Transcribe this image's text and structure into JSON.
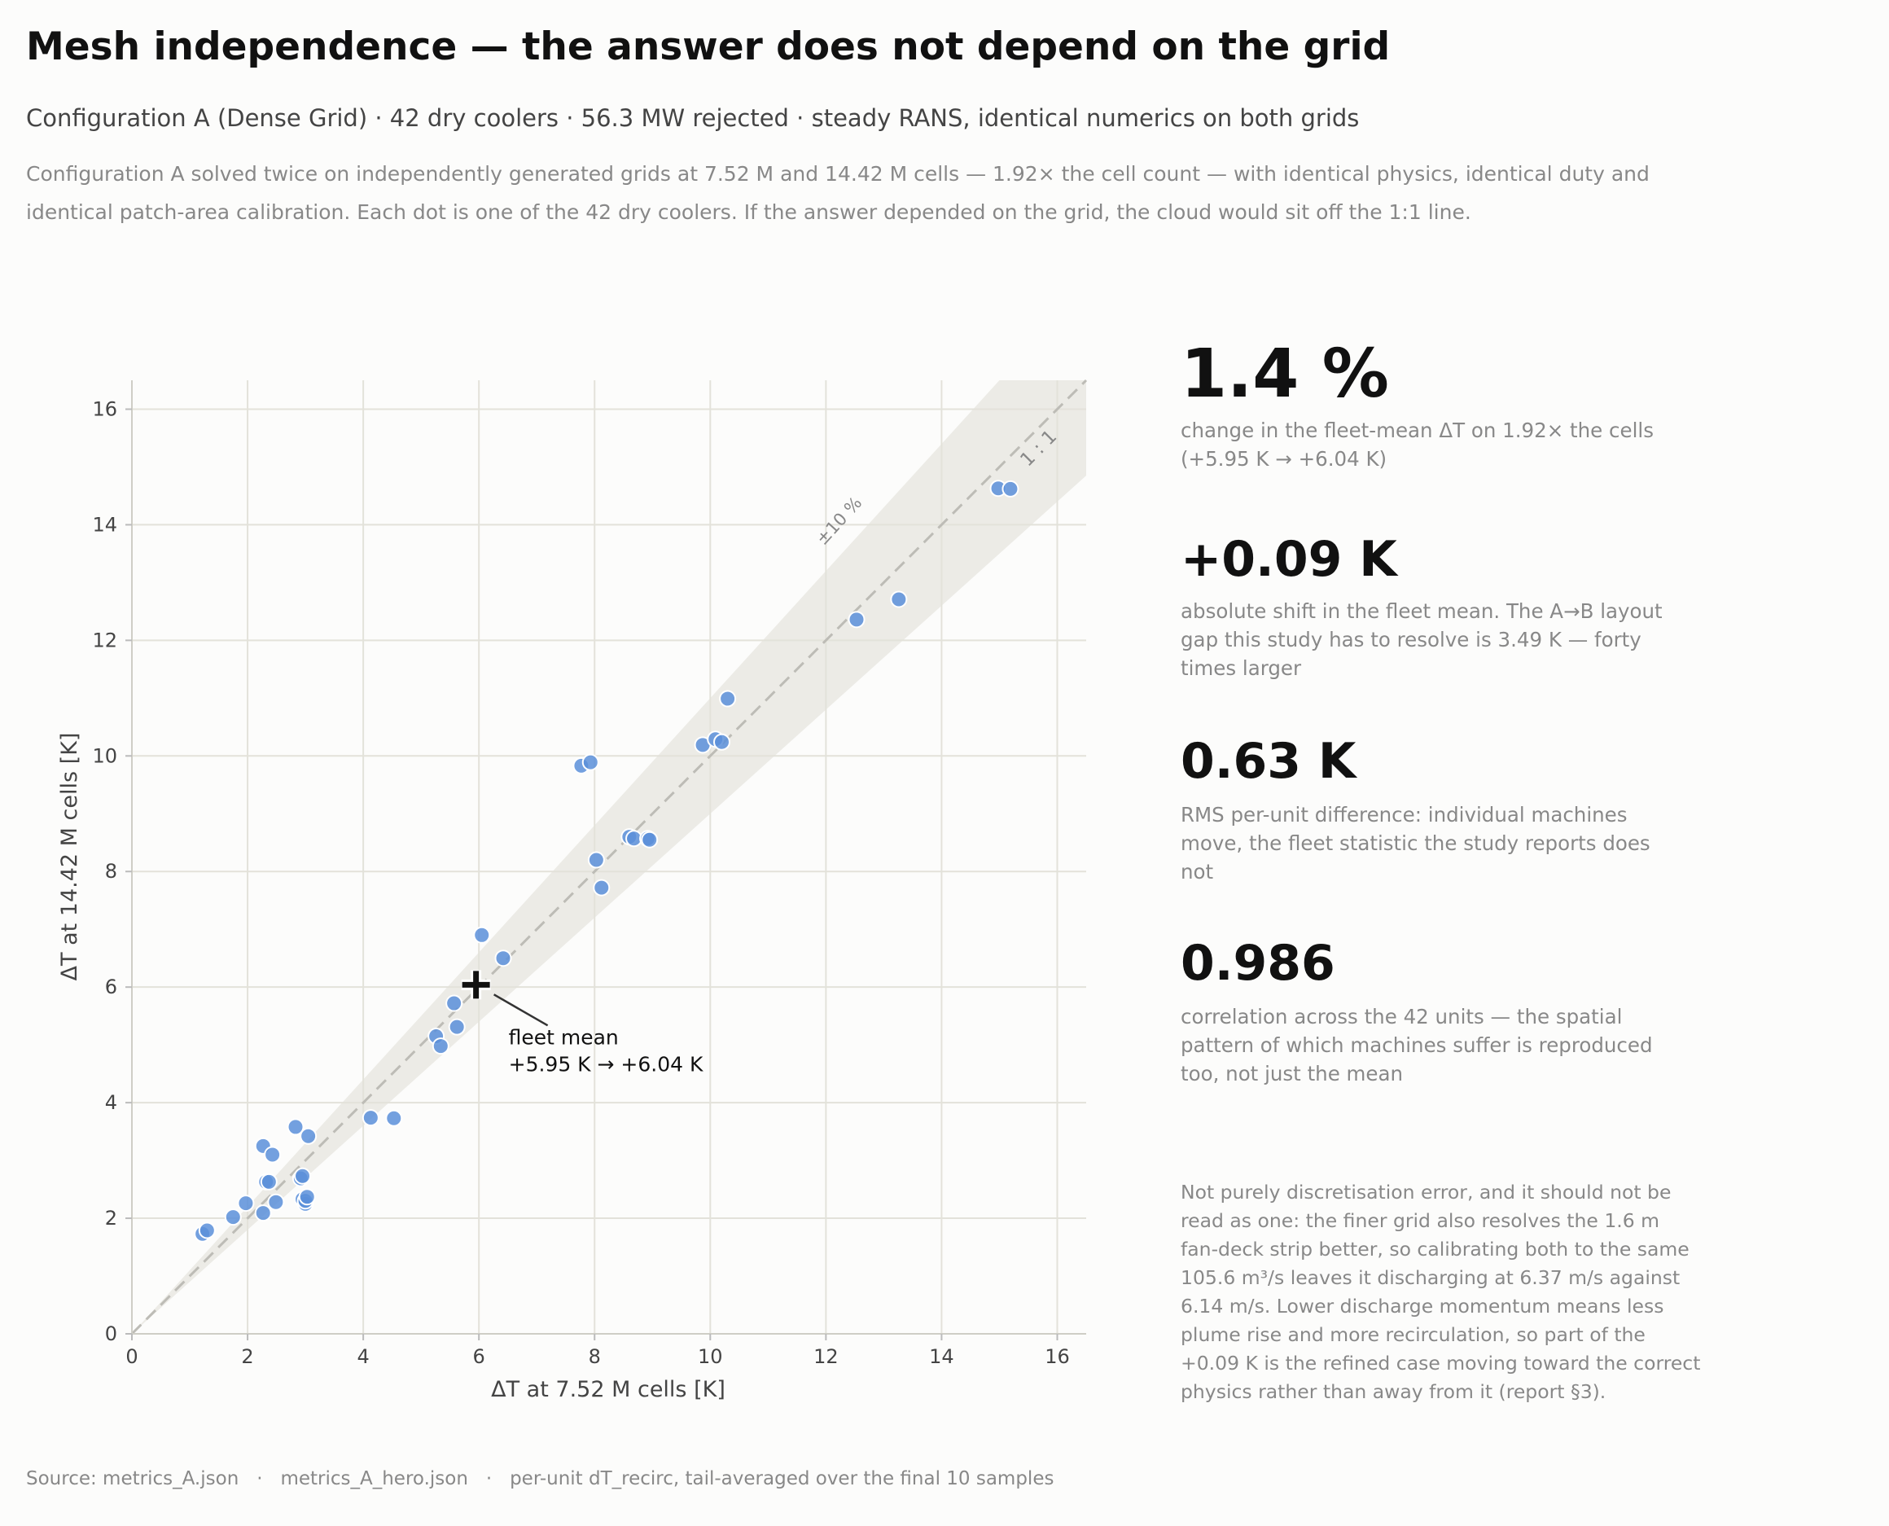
{
  "header": {
    "title": "Mesh independence — the answer does not depend on the grid",
    "subtitle": "Configuration A (Dense Grid) · 42 dry coolers · 56.3 MW rejected · steady RANS, identical numerics on both grids",
    "description": "Configuration A solved twice on independently generated grids at 7.52 M and 14.42 M cells — 1.92× the cell count — with identical physics, identical duty and identical patch-area calibration. Each dot is one of the 42 dry coolers. If the answer depended on the grid, the cloud would sit off the 1:1 line."
  },
  "stats": [
    {
      "value": "1.4 %",
      "description": "change in the fleet-mean ΔT on 1.92× the cells (+5.95 K → +6.04 K)"
    },
    {
      "value": "+0.09 K",
      "description": "absolute shift in the fleet mean. The A→B layout gap this study has to resolve is 3.49 K — forty times larger"
    },
    {
      "value": "0.63 K",
      "description": "RMS per-unit difference: individual machines move, the fleet statistic the study reports does not"
    },
    {
      "value": "0.986",
      "description": "correlation across the 42 units — the spatial pattern of which machines suffer is reproduced too, not just the mean"
    }
  ],
  "note": "Not purely discretisation error, and it should not be read as one: the finer grid also resolves the 1.6 m fan-deck strip better, so calibrating both to the same 105.6 m³/s leaves it discharging at 6.37 m/s against 6.14 m/s. Lower discharge momentum means less plume rise and more recirculation, so part of the +0.09 K is the refined case moving toward the correct physics rather than away from it (report §3).",
  "source": "Source: metrics_A.json   ·   metrics_A_hero.json   ·   per-unit dT_recirc, tail-averaged over the final 10 samples",
  "colors": {
    "point": "#5b8fd9",
    "band": "#ecebe6",
    "grid": "#e3e2da",
    "mean_marker": "#111111"
  },
  "chart_data": {
    "type": "scatter",
    "xlabel": "ΔT at 7.52 M cells  [K]",
    "ylabel": "ΔT at 14.42 M cells  [K]",
    "xlim": [
      0,
      16.5
    ],
    "ylim": [
      0,
      16.5
    ],
    "ticks": [
      0,
      2,
      4,
      6,
      8,
      10,
      12,
      14,
      16
    ],
    "grid": true,
    "identity_line_label": "1 : 1",
    "band_label": "±10 %",
    "band_fraction": 0.1,
    "fleet_mean": {
      "x": 5.95,
      "y": 6.04,
      "label_line1": "fleet mean",
      "label_line2": "+5.95 K → +6.04 K"
    },
    "points": [
      {
        "x": 1.22,
        "y": 1.73
      },
      {
        "x": 1.3,
        "y": 1.79
      },
      {
        "x": 1.75,
        "y": 2.02
      },
      {
        "x": 1.97,
        "y": 2.26
      },
      {
        "x": 2.27,
        "y": 2.09
      },
      {
        "x": 2.27,
        "y": 3.25
      },
      {
        "x": 2.32,
        "y": 2.63
      },
      {
        "x": 2.37,
        "y": 2.63
      },
      {
        "x": 2.43,
        "y": 3.1
      },
      {
        "x": 2.49,
        "y": 2.28
      },
      {
        "x": 2.83,
        "y": 3.58
      },
      {
        "x": 2.92,
        "y": 2.69
      },
      {
        "x": 2.95,
        "y": 2.73
      },
      {
        "x": 2.95,
        "y": 2.33
      },
      {
        "x": 3.0,
        "y": 2.25
      },
      {
        "x": 3.0,
        "y": 2.3
      },
      {
        "x": 3.03,
        "y": 2.37
      },
      {
        "x": 3.05,
        "y": 3.42
      },
      {
        "x": 4.13,
        "y": 3.74
      },
      {
        "x": 4.53,
        "y": 3.73
      },
      {
        "x": 5.26,
        "y": 5.15
      },
      {
        "x": 5.34,
        "y": 4.98
      },
      {
        "x": 5.57,
        "y": 5.72
      },
      {
        "x": 5.62,
        "y": 5.31
      },
      {
        "x": 6.05,
        "y": 6.9
      },
      {
        "x": 6.42,
        "y": 6.5
      },
      {
        "x": 7.77,
        "y": 9.83
      },
      {
        "x": 7.93,
        "y": 9.89
      },
      {
        "x": 8.03,
        "y": 8.2
      },
      {
        "x": 8.12,
        "y": 7.72
      },
      {
        "x": 8.6,
        "y": 8.6
      },
      {
        "x": 8.68,
        "y": 8.57
      },
      {
        "x": 8.92,
        "y": 8.57
      },
      {
        "x": 8.95,
        "y": 8.55
      },
      {
        "x": 9.87,
        "y": 10.19
      },
      {
        "x": 10.09,
        "y": 10.29
      },
      {
        "x": 10.2,
        "y": 10.24
      },
      {
        "x": 10.3,
        "y": 10.99
      },
      {
        "x": 12.53,
        "y": 12.36
      },
      {
        "x": 13.26,
        "y": 12.71
      },
      {
        "x": 14.98,
        "y": 14.63
      },
      {
        "x": 15.19,
        "y": 14.62
      }
    ]
  }
}
